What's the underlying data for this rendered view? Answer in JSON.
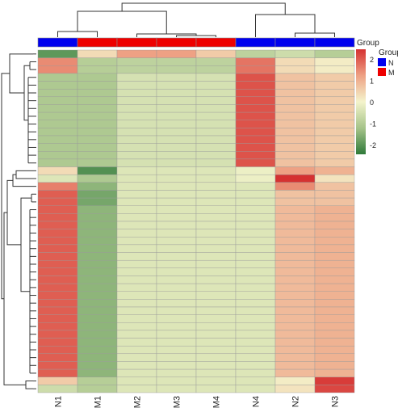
{
  "chart_data": {
    "type": "heatmap",
    "columns": [
      "N1",
      "M1",
      "M2",
      "M3",
      "M4",
      "N4",
      "N2",
      "N3"
    ],
    "column_groups": [
      "N",
      "M",
      "M",
      "M",
      "M",
      "N",
      "N",
      "N"
    ],
    "group_legend": {
      "title": "Group",
      "entries": [
        {
          "label": "N",
          "color": "#0000ee"
        },
        {
          "label": "M",
          "color": "#ee0000"
        }
      ]
    },
    "annotation_label": "Group",
    "colorscale": {
      "ticks": [
        "2",
        "1",
        "0",
        "-1",
        "-2"
      ],
      "colors": [
        "#2f7a3a",
        "#a6c48a",
        "#f4f4cc",
        "#eea184",
        "#d53131"
      ],
      "range": [
        -2,
        2
      ]
    },
    "row_blocks": [
      {
        "rows": 1,
        "values": [
          -1.6,
          0.3,
          1.0,
          1.0,
          0.5,
          -0.7,
          -0.5,
          -0.8
        ]
      },
      {
        "rows": 2,
        "values": [
          1.2,
          -0.8,
          -0.7,
          -0.7,
          -0.7,
          1.4,
          0.3,
          0.1
        ]
      },
      {
        "rows": 12,
        "values": [
          -0.9,
          -0.9,
          -0.4,
          -0.4,
          -0.4,
          1.7,
          0.6,
          0.5
        ]
      },
      {
        "rows": 1,
        "values": [
          0.3,
          -1.7,
          -0.3,
          -0.3,
          -0.3,
          -0.1,
          1.0,
          0.8
        ]
      },
      {
        "rows": 1,
        "values": [
          -0.3,
          -0.9,
          -0.3,
          -0.3,
          -0.3,
          -0.1,
          2.0,
          0.2
        ]
      },
      {
        "rows": 1,
        "values": [
          1.3,
          -1.2,
          -0.3,
          -0.3,
          -0.3,
          -0.3,
          1.2,
          0.6
        ]
      },
      {
        "rows": 2,
        "values": [
          1.6,
          -1.4,
          -0.3,
          -0.3,
          -0.3,
          -0.3,
          0.6,
          0.6
        ]
      },
      {
        "rows": 22,
        "values": [
          1.6,
          -1.2,
          -0.3,
          -0.3,
          -0.3,
          -0.3,
          0.7,
          0.8
        ]
      },
      {
        "rows": 1,
        "values": [
          0.5,
          -0.8,
          -0.3,
          -0.3,
          -0.3,
          -0.3,
          0.1,
          1.9
        ]
      },
      {
        "rows": 1,
        "values": [
          -0.5,
          -0.8,
          -0.3,
          -0.3,
          -0.3,
          -0.3,
          0.2,
          1.8
        ]
      }
    ],
    "xlabel": "",
    "ylabel": ""
  }
}
